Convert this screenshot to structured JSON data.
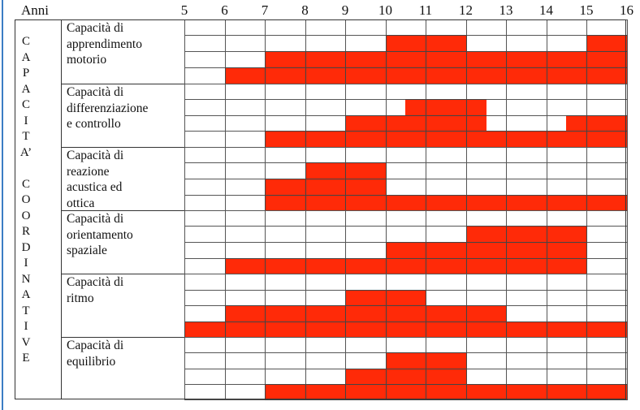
{
  "header": {
    "anni_label": "Anni"
  },
  "years": [
    "5",
    "6",
    "7",
    "8",
    "9",
    "10",
    "11",
    "12",
    "13",
    "14",
    "15",
    "16"
  ],
  "side_letters": [
    "C",
    "A",
    "P",
    "A",
    "C",
    "I",
    "T",
    "A’",
    "",
    "C",
    "O",
    "O",
    "R",
    "D",
    "I",
    "N",
    "A",
    "T",
    "I",
    "V",
    "E"
  ],
  "fill_color": "#ff2a08",
  "groups": [
    {
      "label": "Capacità di\napprendimento\nmotorio",
      "rows": [
        {
          "bars": [
            [
              10,
              12
            ],
            [
              15,
              16
            ]
          ]
        },
        {
          "bars": [
            [
              7,
              16
            ]
          ]
        },
        {
          "bars": [
            [
              6,
              16
            ]
          ]
        }
      ]
    },
    {
      "label": "Capacità di\ndifferenziazione\ne controllo",
      "rows": [
        {
          "bars": []
        },
        {
          "bars": [
            [
              10.5,
              12.5
            ]
          ]
        },
        {
          "bars": [
            [
              9,
              12.5
            ],
            [
              14.5,
              16
            ]
          ]
        },
        {
          "bars": [
            [
              7,
              16
            ]
          ]
        }
      ]
    },
    {
      "label": "Capacità di\nreazione\nacustica ed\nottica",
      "rows": [
        {
          "bars": []
        },
        {
          "bars": [
            [
              8,
              10
            ]
          ]
        },
        {
          "bars": [
            [
              7,
              10
            ]
          ]
        },
        {
          "bars": [
            [
              7,
              16
            ]
          ]
        }
      ]
    },
    {
      "label": "Capacità di\norientamento\nspaziale",
      "rows": [
        {
          "bars": []
        },
        {
          "bars": [
            [
              12,
              15
            ]
          ]
        },
        {
          "bars": [
            [
              10,
              15
            ]
          ]
        },
        {
          "bars": [
            [
              6,
              15
            ]
          ]
        }
      ]
    },
    {
      "label": "Capacità di\nritmo",
      "rows": [
        {
          "bars": []
        },
        {
          "bars": [
            [
              9,
              11
            ]
          ]
        },
        {
          "bars": [
            [
              6,
              13
            ]
          ]
        },
        {
          "bars": [
            [
              4,
              16
            ]
          ]
        }
      ]
    },
    {
      "label": "Capacità di\nequilibrio",
      "rows": [
        {
          "bars": []
        },
        {
          "bars": [
            [
              10,
              12
            ]
          ]
        },
        {
          "bars": [
            [
              9,
              12
            ]
          ]
        },
        {
          "bars": [
            [
              7,
              16
            ]
          ]
        }
      ]
    }
  ]
}
